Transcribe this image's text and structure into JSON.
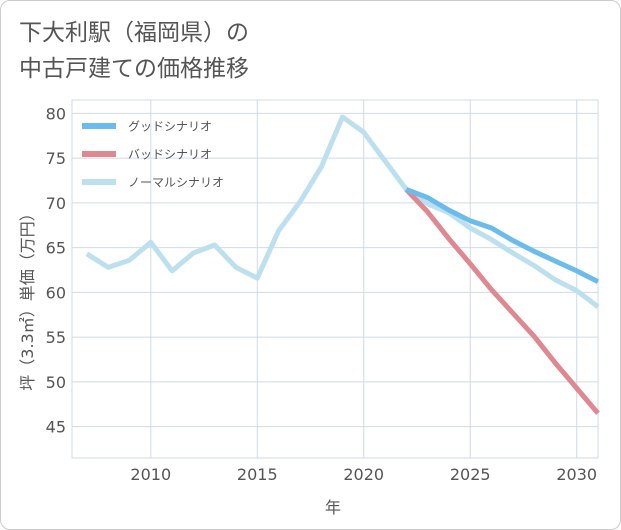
{
  "title_lines": [
    "下大利駅（福岡県）の",
    "中古戸建ての価格推移"
  ],
  "colors": {
    "good": "#6bbbec",
    "bad": "#e08890",
    "normal": "#bde0ee",
    "grid": "#cfdbe6",
    "text": "#555555"
  },
  "chart_data": {
    "type": "line",
    "xlabel": "年",
    "ylabel": "坪（3.3㎡）単価（万円）",
    "xlim": [
      2006.3,
      2031
    ],
    "ylim": [
      41.5,
      81.5
    ],
    "xticks": [
      2010,
      2015,
      2020,
      2025,
      2030
    ],
    "yticks": [
      45,
      50,
      55,
      60,
      65,
      70,
      75,
      80
    ],
    "legend_position": "top-left",
    "series": [
      {
        "name": "グッドシナリオ",
        "key": "good",
        "x": [
          2022,
          2023,
          2024,
          2025,
          2026,
          2027,
          2028,
          2029,
          2030,
          2031
        ],
        "y": [
          71.5,
          70.6,
          69.2,
          68.0,
          67.2,
          65.8,
          64.6,
          63.5,
          62.4,
          61.2
        ]
      },
      {
        "name": "バッドシナリオ",
        "key": "bad",
        "x": [
          2022,
          2023,
          2024,
          2025,
          2026,
          2027,
          2028,
          2029,
          2030,
          2031
        ],
        "y": [
          71.5,
          69.0,
          66.0,
          63.2,
          60.3,
          57.7,
          55.1,
          52.1,
          49.3,
          46.5
        ]
      },
      {
        "name": "ノーマルシナリオ",
        "key": "normal",
        "x": [
          2007,
          2008,
          2009,
          2010,
          2011,
          2012,
          2013,
          2014,
          2015,
          2016,
          2017,
          2018,
          2019,
          2020,
          2021,
          2022,
          2023,
          2024,
          2025,
          2026,
          2027,
          2028,
          2029,
          2030,
          2031
        ],
        "y": [
          64.3,
          62.8,
          63.6,
          65.6,
          62.4,
          64.4,
          65.3,
          62.8,
          61.6,
          66.9,
          70.1,
          74.0,
          79.6,
          77.9,
          74.7,
          71.5,
          69.9,
          68.9,
          67.2,
          65.9,
          64.4,
          63.0,
          61.4,
          60.2,
          58.4
        ]
      }
    ]
  }
}
